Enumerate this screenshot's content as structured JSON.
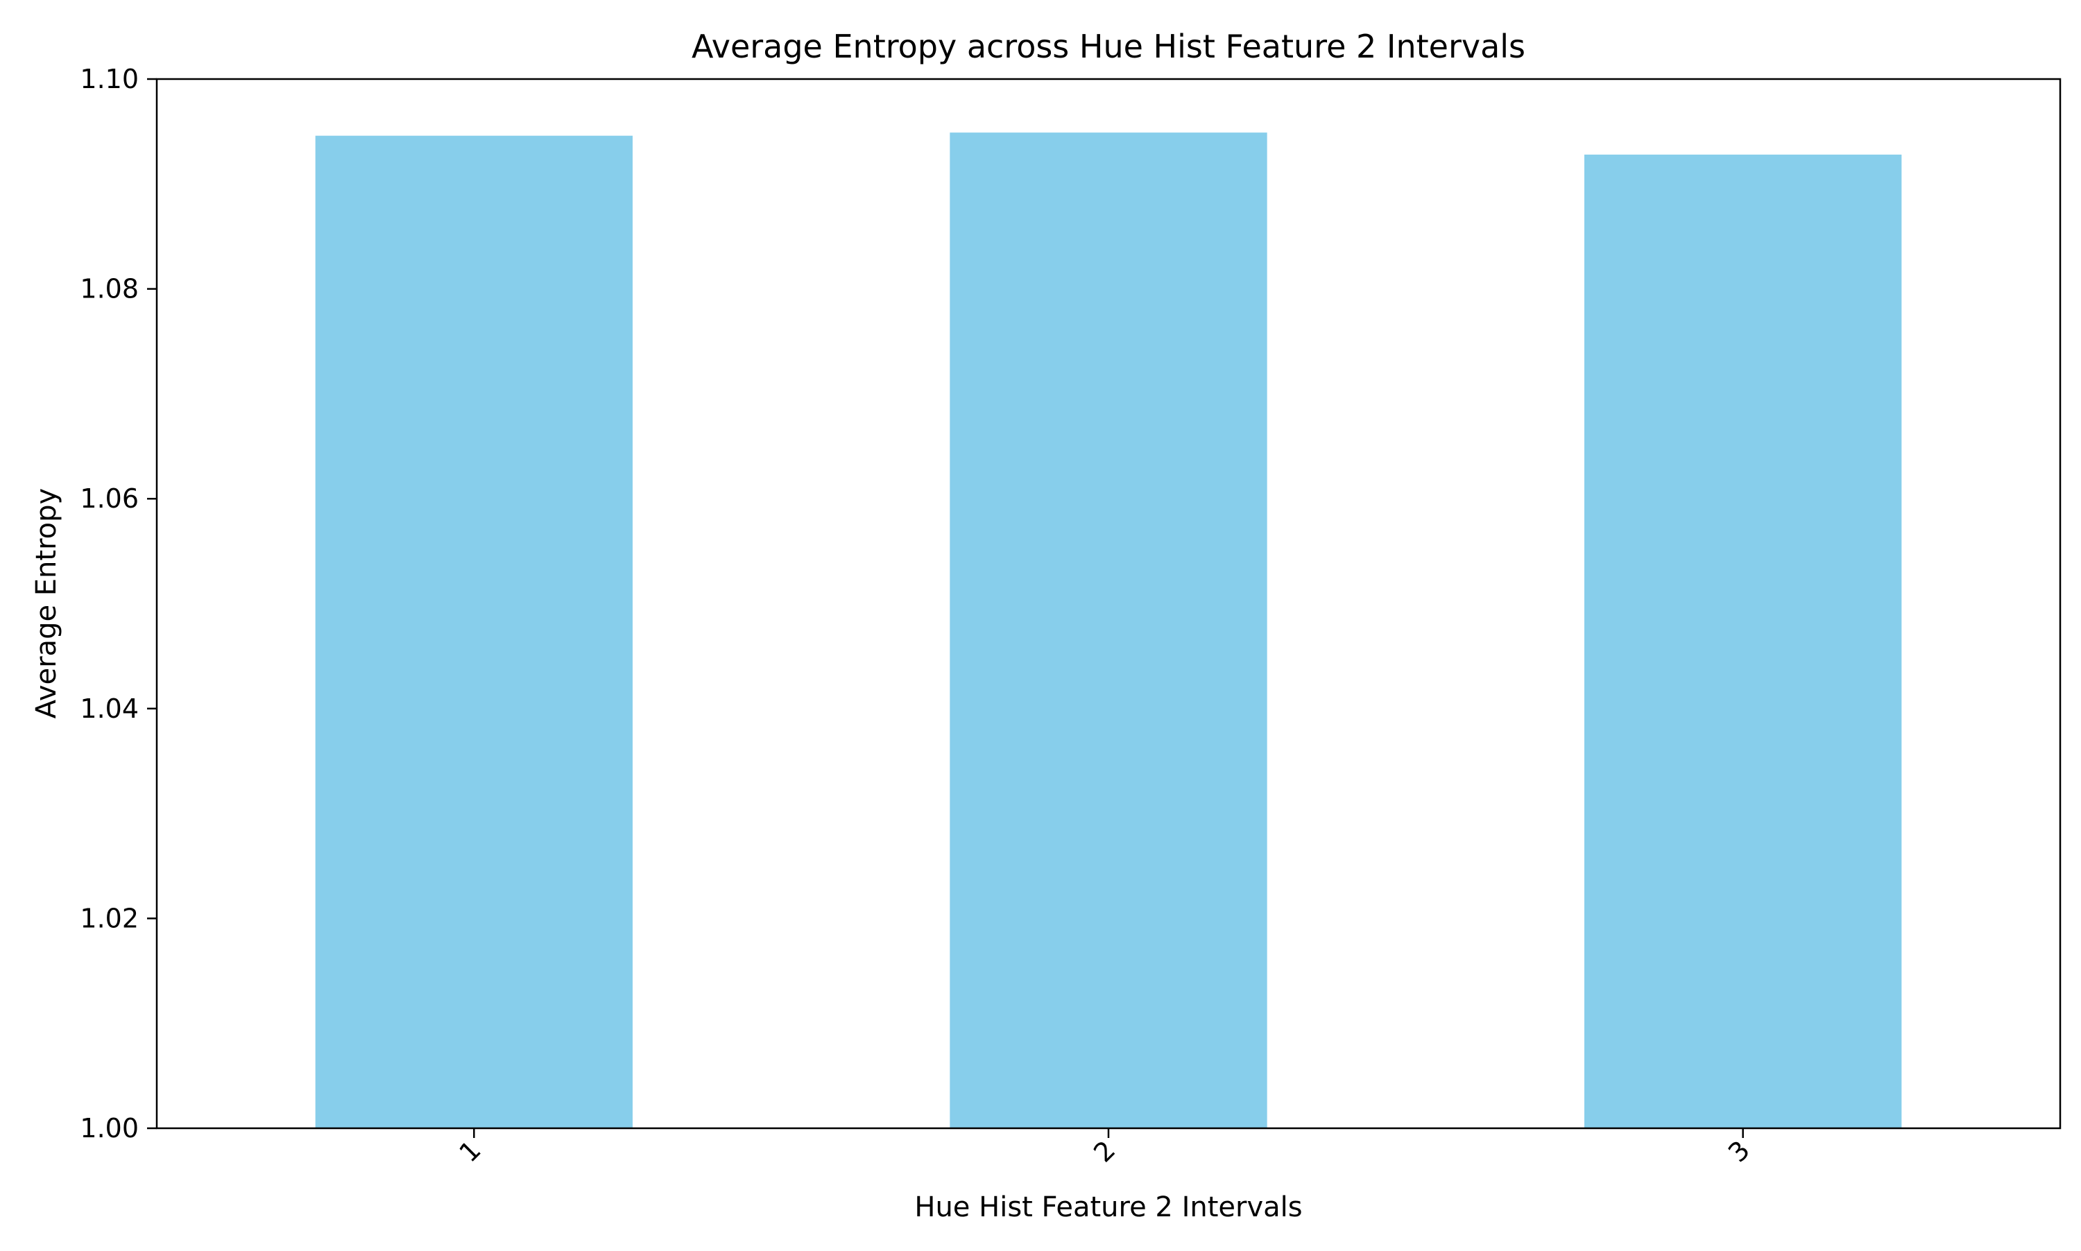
{
  "chart_data": {
    "type": "bar",
    "title": "Average Entropy across Hue Hist Feature 2 Intervals",
    "xlabel": "Hue Hist Feature 2 Intervals",
    "ylabel": "Average Entropy",
    "categories": [
      "1",
      "2",
      "3"
    ],
    "values": [
      1.0946,
      1.0949,
      1.0928
    ],
    "ylim": [
      1.0,
      1.1
    ],
    "yticks": [
      "1.00",
      "1.02",
      "1.04",
      "1.06",
      "1.08",
      "1.10"
    ],
    "bar_color": "#87CEEB",
    "grid": false,
    "legend": null
  }
}
